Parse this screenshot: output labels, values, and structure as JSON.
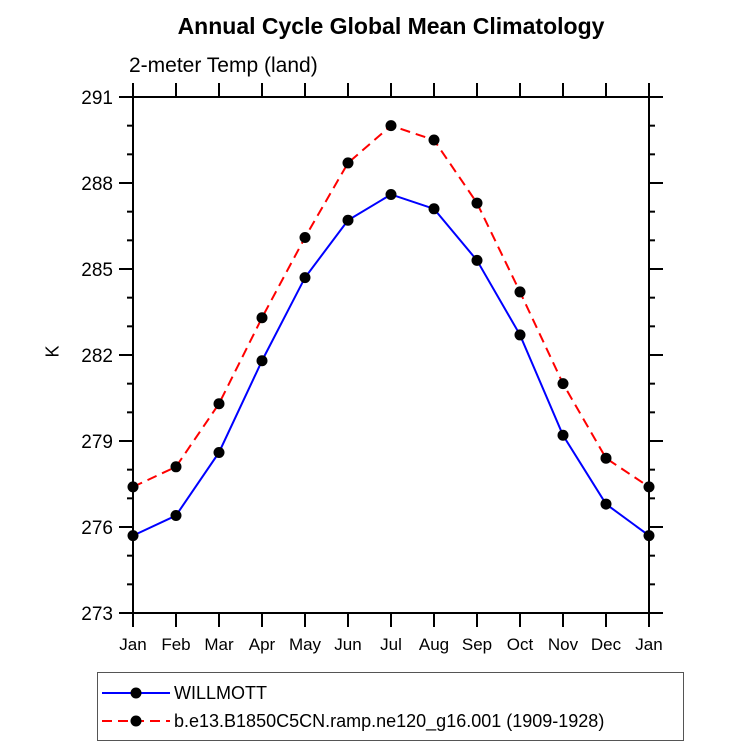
{
  "header": {
    "title": "Annual Cycle Global Mean Climatology",
    "subtitle": "2-meter Temp (land)"
  },
  "chart_data": {
    "type": "line",
    "title": "Annual Cycle Global Mean Climatology",
    "subtitle": "2-meter Temp (land)",
    "xlabel": "",
    "ylabel": "K",
    "categories": [
      "Jan",
      "Feb",
      "Mar",
      "Apr",
      "May",
      "Jun",
      "Jul",
      "Aug",
      "Sep",
      "Oct",
      "Nov",
      "Dec",
      "Jan"
    ],
    "ylim": [
      273,
      291
    ],
    "ytick_major": [
      273,
      276,
      279,
      282,
      285,
      288,
      291
    ],
    "ytick_minor_step": 1,
    "grid": false,
    "legend_position": "bottom-left",
    "axis_color": "#000000",
    "series": [
      {
        "name": "WILLMOTT",
        "color": "#0000ff",
        "dash": "solid",
        "marker": "filled-circle",
        "marker_color": "#000000",
        "values": [
          275.7,
          276.4,
          278.6,
          281.8,
          284.7,
          286.7,
          287.6,
          287.1,
          285.3,
          282.7,
          279.2,
          276.8,
          275.7
        ]
      },
      {
        "name": "b.e13.B1850C5CN.ramp.ne120_g16.001 (1909-1928)",
        "color": "#ff0000",
        "dash": "dashed",
        "marker": "filled-circle",
        "marker_color": "#000000",
        "values": [
          277.4,
          278.1,
          280.3,
          283.3,
          286.1,
          288.7,
          290.0,
          289.5,
          287.3,
          284.2,
          281.0,
          278.4,
          277.4
        ]
      }
    ]
  }
}
